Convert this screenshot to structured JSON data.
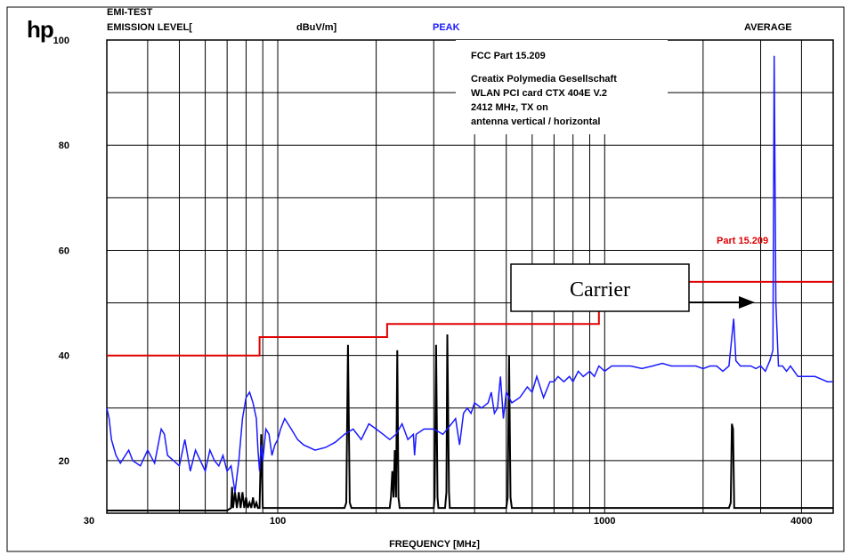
{
  "header": {
    "logo": "hp",
    "title_line1": "EMI-TEST",
    "title_line2": "EMISSION LEVEL[",
    "unit": "dBuV/m]",
    "peak_label": "PEAK",
    "average_label": "AVERAGE",
    "xlabel": "FREQUENCY [MHz]"
  },
  "annotation": {
    "lines": [
      "FCC Part 15.209",
      "Creatix Polymedia Gesellschaft",
      "WLAN PCI card CTX 404E V.2",
      "2412 MHz, TX on",
      "antenna vertical / horizontal"
    ],
    "carrier_label": "Carrier"
  },
  "colors": {
    "peak": "#1a1aff",
    "limit": "#e00000",
    "average": "#000000",
    "grid": "#000000"
  },
  "chart_data": {
    "type": "line",
    "xscale": "log",
    "xlim": [
      30,
      5000
    ],
    "ylim": [
      10,
      100
    ],
    "y_ticks": [
      20,
      40,
      60,
      80,
      100
    ],
    "x_tick_labels": [
      {
        "value": 30,
        "label": "30"
      },
      {
        "value": 100,
        "label": "100"
      },
      {
        "value": 1000,
        "label": "1000"
      },
      {
        "value": 4000,
        "label": "4000"
      }
    ],
    "grid": true,
    "limit_line": {
      "name": "Part 15.209",
      "points": [
        [
          30,
          40
        ],
        [
          88,
          40
        ],
        [
          88,
          43.5
        ],
        [
          216,
          43.5
        ],
        [
          216,
          46
        ],
        [
          960,
          46
        ],
        [
          960,
          54
        ],
        [
          5000,
          54
        ]
      ]
    },
    "series": [
      {
        "name": "PEAK",
        "points": [
          [
            30,
            30
          ],
          [
            30.5,
            28
          ],
          [
            31,
            24
          ],
          [
            32,
            21
          ],
          [
            33,
            19.5
          ],
          [
            35,
            22
          ],
          [
            36,
            20
          ],
          [
            38,
            19
          ],
          [
            40,
            22
          ],
          [
            42,
            19.5
          ],
          [
            44,
            26
          ],
          [
            45,
            25
          ],
          [
            46,
            21
          ],
          [
            48,
            20
          ],
          [
            50,
            19
          ],
          [
            52,
            24
          ],
          [
            54,
            18
          ],
          [
            56,
            22
          ],
          [
            58,
            20
          ],
          [
            60,
            18
          ],
          [
            62,
            22
          ],
          [
            64,
            20
          ],
          [
            66,
            19
          ],
          [
            68,
            21
          ],
          [
            70,
            18
          ],
          [
            72,
            19
          ],
          [
            74,
            14
          ],
          [
            76,
            20
          ],
          [
            78,
            28
          ],
          [
            80,
            32
          ],
          [
            82,
            33
          ],
          [
            84,
            31
          ],
          [
            86,
            28
          ],
          [
            87,
            22
          ],
          [
            88,
            18
          ],
          [
            89,
            23
          ],
          [
            90,
            20
          ],
          [
            92,
            26
          ],
          [
            94,
            25
          ],
          [
            96,
            21
          ],
          [
            98,
            23
          ],
          [
            100,
            24
          ],
          [
            102,
            26
          ],
          [
            105,
            28
          ],
          [
            110,
            26
          ],
          [
            115,
            24
          ],
          [
            120,
            23
          ],
          [
            130,
            22
          ],
          [
            140,
            22.5
          ],
          [
            150,
            23.5
          ],
          [
            160,
            25
          ],
          [
            170,
            26
          ],
          [
            180,
            24
          ],
          [
            190,
            27
          ],
          [
            200,
            26
          ],
          [
            210,
            25
          ],
          [
            220,
            24
          ],
          [
            230,
            25
          ],
          [
            240,
            27
          ],
          [
            250,
            24
          ],
          [
            260,
            25
          ],
          [
            262,
            21
          ],
          [
            265,
            25
          ],
          [
            280,
            26
          ],
          [
            300,
            26
          ],
          [
            320,
            25
          ],
          [
            340,
            27
          ],
          [
            350,
            28
          ],
          [
            360,
            23
          ],
          [
            370,
            29
          ],
          [
            380,
            30
          ],
          [
            390,
            29
          ],
          [
            400,
            31
          ],
          [
            420,
            30
          ],
          [
            440,
            31
          ],
          [
            450,
            33
          ],
          [
            460,
            29
          ],
          [
            470,
            30
          ],
          [
            480,
            36
          ],
          [
            490,
            28
          ],
          [
            500,
            33
          ],
          [
            520,
            31
          ],
          [
            550,
            32
          ],
          [
            580,
            34
          ],
          [
            600,
            33
          ],
          [
            620,
            36
          ],
          [
            650,
            32
          ],
          [
            680,
            35
          ],
          [
            700,
            35
          ],
          [
            720,
            36
          ],
          [
            750,
            35
          ],
          [
            780,
            36
          ],
          [
            800,
            35
          ],
          [
            830,
            37
          ],
          [
            860,
            36
          ],
          [
            900,
            37
          ],
          [
            930,
            36
          ],
          [
            960,
            38
          ],
          [
            1000,
            37
          ],
          [
            1050,
            38
          ],
          [
            1100,
            38
          ],
          [
            1200,
            38
          ],
          [
            1300,
            37.5
          ],
          [
            1400,
            38
          ],
          [
            1500,
            38.5
          ],
          [
            1600,
            38
          ],
          [
            1700,
            38
          ],
          [
            1800,
            38
          ],
          [
            1900,
            38
          ],
          [
            2000,
            37.5
          ],
          [
            2100,
            38
          ],
          [
            2200,
            38
          ],
          [
            2300,
            37
          ],
          [
            2400,
            38
          ],
          [
            2480,
            47
          ],
          [
            2520,
            39
          ],
          [
            2600,
            38
          ],
          [
            2700,
            38
          ],
          [
            2800,
            38
          ],
          [
            2900,
            37.5
          ],
          [
            3000,
            38
          ],
          [
            3100,
            37
          ],
          [
            3200,
            39
          ],
          [
            3270,
            41
          ],
          [
            3300,
            97
          ],
          [
            3340,
            50
          ],
          [
            3400,
            38
          ],
          [
            3500,
            38
          ],
          [
            3600,
            37
          ],
          [
            3700,
            38
          ],
          [
            3800,
            37
          ],
          [
            3900,
            36
          ],
          [
            4000,
            36
          ],
          [
            4200,
            36
          ],
          [
            4400,
            36
          ],
          [
            4600,
            35.5
          ],
          [
            4800,
            35
          ],
          [
            5000,
            35
          ]
        ]
      },
      {
        "name": "AVERAGE",
        "points": [
          [
            30,
            10.5
          ],
          [
            70,
            10.5
          ],
          [
            72,
            11
          ],
          [
            72.5,
            15
          ],
          [
            73,
            11
          ],
          [
            74,
            14
          ],
          [
            75,
            11
          ],
          [
            76,
            14
          ],
          [
            77,
            11
          ],
          [
            78,
            14
          ],
          [
            79,
            11
          ],
          [
            80,
            13
          ],
          [
            81,
            11
          ],
          [
            82,
            12
          ],
          [
            83,
            11
          ],
          [
            84,
            13
          ],
          [
            85,
            11
          ],
          [
            86,
            12
          ],
          [
            87,
            11
          ],
          [
            88,
            11
          ],
          [
            89,
            25
          ],
          [
            90,
            11
          ],
          [
            160,
            11
          ],
          [
            162,
            12
          ],
          [
            164,
            42
          ],
          [
            166,
            12
          ],
          [
            168,
            11
          ],
          [
            220,
            11
          ],
          [
            222,
            13
          ],
          [
            224,
            18
          ],
          [
            226,
            13
          ],
          [
            228,
            22
          ],
          [
            230,
            13
          ],
          [
            232,
            41
          ],
          [
            234,
            13
          ],
          [
            236,
            11
          ],
          [
            300,
            11
          ],
          [
            302,
            13
          ],
          [
            305,
            42
          ],
          [
            308,
            13
          ],
          [
            310,
            11
          ],
          [
            325,
            11
          ],
          [
            328,
            14
          ],
          [
            330,
            44
          ],
          [
            334,
            14
          ],
          [
            336,
            11
          ],
          [
            500,
            11
          ],
          [
            505,
            13
          ],
          [
            510,
            40
          ],
          [
            515,
            13
          ],
          [
            520,
            11
          ],
          [
            2400,
            11
          ],
          [
            2430,
            12
          ],
          [
            2450,
            27
          ],
          [
            2470,
            26
          ],
          [
            2490,
            11
          ],
          [
            5000,
            11
          ]
        ]
      }
    ]
  }
}
